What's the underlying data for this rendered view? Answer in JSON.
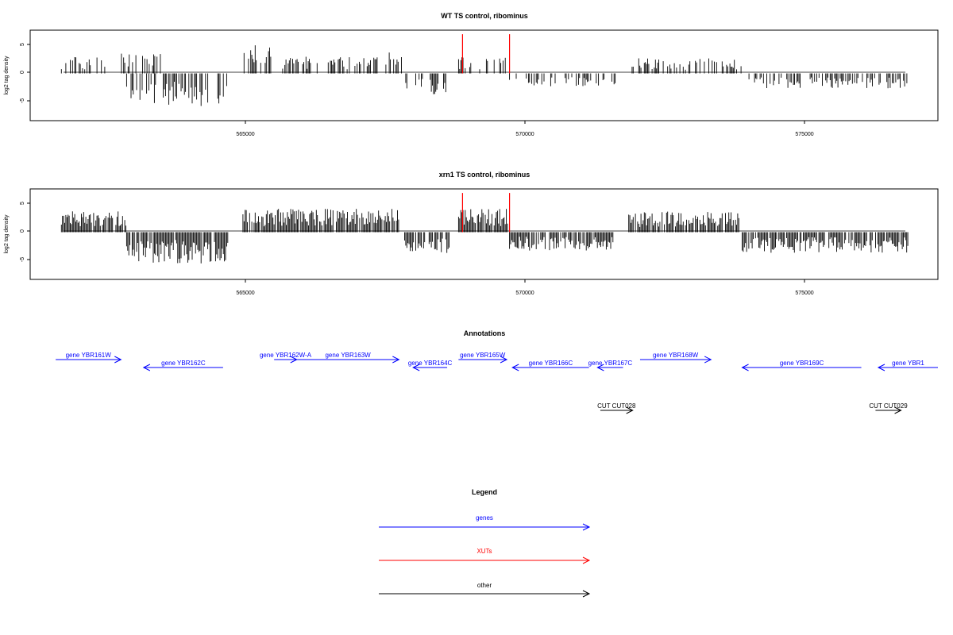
{
  "chart_data": [
    {
      "type": "bar",
      "title": "WT TS control, ribominus",
      "xlabel": "",
      "ylabel": "log2 tag density",
      "xlim": [
        561250,
        577250
      ],
      "ylim": [
        -8.2,
        7.5
      ],
      "x_ticks": [
        565000,
        570000,
        575000
      ],
      "y_ticks": [
        -5,
        0,
        5
      ],
      "color": "#000000",
      "highlight_color": "#ff0000",
      "segments": [
        {
          "start": 561800,
          "end": 562600,
          "level": 2.0
        },
        {
          "start": 562800,
          "end": 563550,
          "level": 2.5
        },
        {
          "start": 562950,
          "end": 564750,
          "level": -4.0
        },
        {
          "start": 565000,
          "end": 565500,
          "level": 3.5
        },
        {
          "start": 565700,
          "end": 567400,
          "level": 2.0
        },
        {
          "start": 567500,
          "end": 567800,
          "level": 2.5
        },
        {
          "start": 567850,
          "end": 568650,
          "level": -2.5
        },
        {
          "start": 568800,
          "end": 569650,
          "level": 2.0
        },
        {
          "start": 569700,
          "end": 571600,
          "level": -1.6
        },
        {
          "start": 571800,
          "end": 573800,
          "level": 1.8
        },
        {
          "start": 573900,
          "end": 576750,
          "level": -1.8
        }
      ],
      "highlights": [
        {
          "x": 568870,
          "y": 6.8
        },
        {
          "x": 569700,
          "y": 6.8
        }
      ]
    },
    {
      "type": "bar",
      "title": "xrn1 TS control, ribominus",
      "xlabel": "",
      "ylabel": "log2 tag density",
      "xlim": [
        561250,
        577250
      ],
      "ylim": [
        -8.2,
        7.5
      ],
      "x_ticks": [
        565000,
        570000,
        575000
      ],
      "y_ticks": [
        -5,
        0,
        5
      ],
      "color": "#000000",
      "highlight_color": "#ff0000",
      "segments": [
        {
          "start": 561800,
          "end": 562950,
          "level": 2.5
        },
        {
          "start": 562950,
          "end": 564750,
          "level": -3.8
        },
        {
          "start": 565000,
          "end": 567750,
          "level": 2.8
        },
        {
          "start": 567850,
          "end": 568650,
          "level": -2.5
        },
        {
          "start": 568800,
          "end": 569700,
          "level": 2.8
        },
        {
          "start": 569700,
          "end": 571600,
          "level": -2.2
        },
        {
          "start": 571800,
          "end": 573750,
          "level": 2.5
        },
        {
          "start": 573800,
          "end": 576750,
          "level": -2.5
        }
      ],
      "highlights": [
        {
          "x": 568870,
          "y": 6.8
        },
        {
          "x": 569700,
          "y": 6.8
        }
      ]
    }
  ],
  "annotations": {
    "title": "Annotations",
    "genes": [
      {
        "label": "gene YBR161W",
        "start": 561700,
        "end": 562850,
        "strand": "+",
        "row": 0
      },
      {
        "label": "gene YBR162C",
        "start": 563250,
        "end": 564650,
        "strand": "-",
        "row": 1
      },
      {
        "label": "gene YBR162W-A",
        "start": 565550,
        "end": 565950,
        "strand": "+",
        "row": 0
      },
      {
        "label": "gene YBR163W",
        "start": 565950,
        "end": 567750,
        "strand": "+",
        "row": 0
      },
      {
        "label": "gene YBR164C",
        "start": 568000,
        "end": 568600,
        "strand": "-",
        "row": 1
      },
      {
        "label": "gene YBR165W",
        "start": 568800,
        "end": 569650,
        "strand": "+",
        "row": 0
      },
      {
        "label": "gene YBR166C",
        "start": 569750,
        "end": 571100,
        "strand": "-",
        "row": 1
      },
      {
        "label": "gene YBR167C",
        "start": 571250,
        "end": 571700,
        "strand": "-",
        "row": 1
      },
      {
        "label": "gene YBR168W",
        "start": 572000,
        "end": 573250,
        "strand": "+",
        "row": 0
      },
      {
        "label": "gene YBR169C",
        "start": 573800,
        "end": 575900,
        "strand": "-",
        "row": 1
      },
      {
        "label": "gene YBR1",
        "start": 576200,
        "end": 577250,
        "strand": "-",
        "row": 1
      }
    ],
    "cuts": [
      {
        "label": "CUT CUT028",
        "start": 571300,
        "end": 571870,
        "strand": "+"
      },
      {
        "label": "CUT CUT029",
        "start": 576150,
        "end": 576600,
        "strand": "+"
      }
    ]
  },
  "legend": {
    "title": "Legend",
    "items": [
      {
        "label": "genes",
        "color": "#0000ff"
      },
      {
        "label": "XUTs",
        "color": "#ff0000"
      },
      {
        "label": "other",
        "color": "#000000"
      }
    ]
  }
}
